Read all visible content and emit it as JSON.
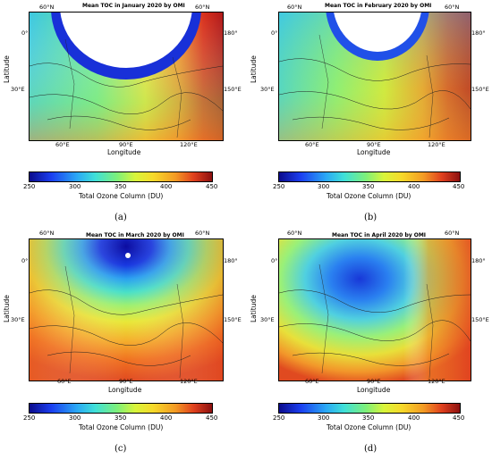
{
  "colorbar": {
    "ticks": [
      "250",
      "300",
      "350",
      "400",
      "450"
    ],
    "label": "Total Ozone Column (DU)"
  },
  "axes": {
    "xlabel": "Longitude",
    "ylabel": "Latitude",
    "top_left": "60°N",
    "top_right": "60°N",
    "left_0": "0°",
    "left_30e": "30°E",
    "right_180": "180°",
    "right_150e": "150°E",
    "bottom_60e": "60°E",
    "bottom_90e": "90°E",
    "bottom_120e": "120°E"
  },
  "panels": [
    {
      "title": "Mean TOC in January 2020 by OMI",
      "label": "(a)"
    },
    {
      "title": "Mean TOC in February 2020 by OMI",
      "label": "(b)"
    },
    {
      "title": "Mean TOC in March 2020 by OMI",
      "label": "(c)"
    },
    {
      "title": "Mean TOC in April 2020 by OMI",
      "label": "(d)"
    }
  ]
}
